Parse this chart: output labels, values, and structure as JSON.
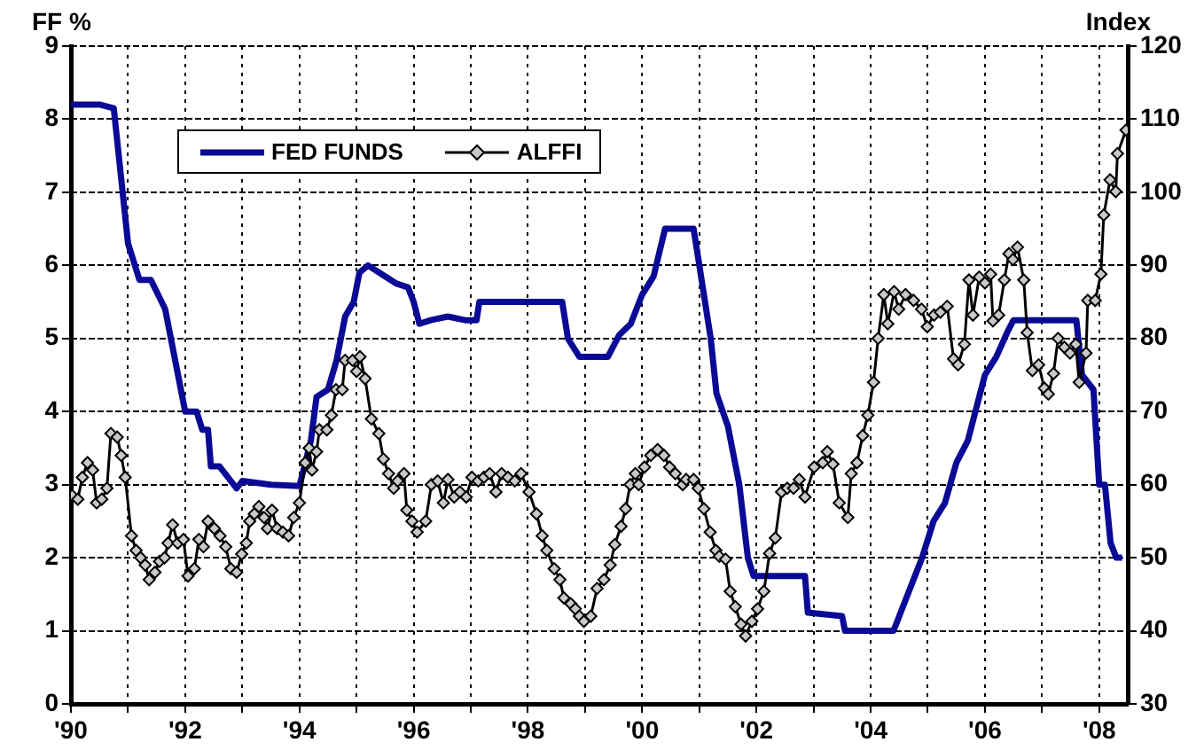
{
  "chart_data": {
    "type": "line",
    "ylabel": "FF %",
    "y2label": "Index",
    "xlim": [
      1990,
      2008.5
    ],
    "xticks": [
      {
        "value": 1990,
        "label": "'90"
      },
      {
        "value": 1991,
        "label": null
      },
      {
        "value": 1992,
        "label": "'92"
      },
      {
        "value": 1993,
        "label": null
      },
      {
        "value": 1994,
        "label": "'94"
      },
      {
        "value": 1995,
        "label": null
      },
      {
        "value": 1996,
        "label": "'96"
      },
      {
        "value": 1997,
        "label": null
      },
      {
        "value": 1998,
        "label": "'98"
      },
      {
        "value": 1999,
        "label": null
      },
      {
        "value": 2000,
        "label": "'00"
      },
      {
        "value": 2001,
        "label": null
      },
      {
        "value": 2002,
        "label": "'02"
      },
      {
        "value": 2003,
        "label": null
      },
      {
        "value": 2004,
        "label": "'04"
      },
      {
        "value": 2005,
        "label": null
      },
      {
        "value": 2006,
        "label": "'06"
      },
      {
        "value": 2007,
        "label": null
      },
      {
        "value": 2008,
        "label": "'08"
      }
    ],
    "ylim": [
      0,
      9
    ],
    "yticks": [
      0,
      1,
      2,
      3,
      4,
      5,
      6,
      7,
      8,
      9
    ],
    "y2lim": [
      30,
      120
    ],
    "y2ticks": [
      30,
      40,
      50,
      60,
      70,
      80,
      90,
      100,
      110,
      120
    ],
    "grid": true,
    "legend": "top left",
    "line_style": "solid",
    "series": [
      {
        "name": "FED FUNDS",
        "color": "#0a0a96",
        "marker": "none",
        "x": [
          1990.0,
          1990.5,
          1990.75,
          1991.0,
          1991.2,
          1991.4,
          1991.65,
          1991.85,
          1992.0,
          1992.2,
          1992.3,
          1992.4,
          1992.45,
          1992.6,
          1992.9,
          1993.0,
          1993.5,
          1994.0,
          1994.2,
          1994.3,
          1994.5,
          1994.65,
          1994.8,
          1994.95,
          1995.05,
          1995.2,
          1995.5,
          1995.7,
          1995.9,
          1996.0,
          1996.1,
          1996.3,
          1996.6,
          1996.9,
          1997.1,
          1997.15,
          1997.5,
          1998.0,
          1998.6,
          1998.7,
          1998.9,
          1999.1,
          1999.4,
          1999.6,
          1999.8,
          1999.9,
          2000.0,
          2000.2,
          2000.4,
          2000.9,
          2001.0,
          2001.2,
          2001.3,
          2001.5,
          2001.7,
          2001.85,
          2001.95,
          2002.5,
          2002.85,
          2002.9,
          2003.5,
          2003.55,
          2004.4,
          2004.6,
          2004.9,
          2005.1,
          2005.3,
          2005.5,
          2005.7,
          2005.9,
          2006.0,
          2006.2,
          2006.4,
          2006.5,
          2007.6,
          2007.7,
          2007.9,
          2008.0,
          2008.1,
          2008.2,
          2008.3,
          2008.4
        ],
        "values": [
          8.2,
          8.2,
          8.15,
          6.3,
          5.8,
          5.8,
          5.4,
          4.6,
          4.0,
          4.0,
          3.75,
          3.75,
          3.25,
          3.25,
          2.95,
          3.05,
          3.0,
          2.98,
          3.6,
          4.2,
          4.3,
          4.7,
          5.3,
          5.5,
          5.9,
          6.0,
          5.85,
          5.75,
          5.7,
          5.5,
          5.2,
          5.25,
          5.3,
          5.25,
          5.25,
          5.5,
          5.5,
          5.5,
          5.5,
          5.0,
          4.75,
          4.75,
          4.75,
          5.05,
          5.2,
          5.4,
          5.6,
          5.85,
          6.5,
          6.5,
          6.0,
          5.0,
          4.25,
          3.8,
          3.0,
          2.0,
          1.75,
          1.75,
          1.75,
          1.25,
          1.2,
          1.0,
          1.0,
          1.4,
          2.0,
          2.5,
          2.75,
          3.3,
          3.6,
          4.2,
          4.5,
          4.75,
          5.1,
          5.25,
          5.25,
          4.5,
          4.3,
          3.0,
          3.0,
          2.2,
          2.0,
          2.0
        ]
      },
      {
        "name": "ALFFI",
        "color": "#000000",
        "marker": "diamond",
        "axis": "y2",
        "x": [
          1990.02,
          1990.12,
          1990.2,
          1990.29,
          1990.38,
          1990.45,
          1990.54,
          1990.63,
          1990.7,
          1990.81,
          1990.88,
          1990.95,
          1991.06,
          1991.14,
          1991.22,
          1991.3,
          1991.37,
          1991.47,
          1991.55,
          1991.64,
          1991.7,
          1991.78,
          1991.87,
          1991.97,
          1992.05,
          1992.16,
          1992.24,
          1992.32,
          1992.4,
          1992.51,
          1992.61,
          1992.71,
          1992.8,
          1992.9,
          1992.99,
          1993.07,
          1993.13,
          1993.21,
          1993.29,
          1993.38,
          1993.44,
          1993.52,
          1993.61,
          1993.71,
          1993.81,
          1993.9,
          1994.0,
          1994.1,
          1994.17,
          1994.22,
          1994.3,
          1994.35,
          1994.48,
          1994.56,
          1994.64,
          1994.75,
          1994.8,
          1994.93,
          1995.0,
          1995.06,
          1995.15,
          1995.26,
          1995.39,
          1995.47,
          1995.56,
          1995.65,
          1995.72,
          1995.83,
          1995.88,
          1995.97,
          1996.06,
          1996.21,
          1996.31,
          1996.42,
          1996.52,
          1996.6,
          1996.71,
          1996.81,
          1996.92,
          1997.02,
          1997.13,
          1997.23,
          1997.33,
          1997.44,
          1997.54,
          1997.65,
          1997.77,
          1997.88,
          1998.02,
          1998.15,
          1998.25,
          1998.33,
          1998.46,
          1998.56,
          1998.63,
          1998.75,
          1998.83,
          1998.9,
          1998.98,
          1999.1,
          1999.21,
          1999.33,
          1999.44,
          1999.52,
          1999.63,
          1999.71,
          1999.79,
          1999.88,
          1999.94,
          2000.04,
          2000.15,
          2000.27,
          2000.38,
          2000.48,
          2000.58,
          2000.71,
          2000.77,
          2000.9,
          2000.98,
          2001.08,
          2001.19,
          2001.29,
          2001.35,
          2001.46,
          2001.54,
          2001.63,
          2001.73,
          2001.81,
          2001.92,
          2002.02,
          2002.13,
          2002.23,
          2002.33,
          2002.44,
          2002.54,
          2002.65,
          2002.75,
          2002.85,
          2003.01,
          2003.16,
          2003.24,
          2003.34,
          2003.45,
          2003.6,
          2003.66,
          2003.76,
          2003.86,
          2003.95,
          2004.05,
          2004.13,
          2004.23,
          2004.3,
          2004.41,
          2004.49,
          2004.61,
          2004.75,
          2004.89,
          2004.99,
          2005.11,
          2005.22,
          2005.34,
          2005.45,
          2005.53,
          2005.64,
          2005.72,
          2005.79,
          2005.9,
          2006.0,
          2006.1,
          2006.14,
          2006.24,
          2006.34,
          2006.42,
          2006.49,
          2006.57,
          2006.68,
          2006.74,
          2006.83,
          2006.94,
          2007.04,
          2007.11,
          2007.2,
          2007.28,
          2007.39,
          2007.49,
          2007.59,
          2007.65,
          2007.77,
          2007.8,
          2007.93,
          2008.03,
          2008.08,
          2008.19,
          2008.29,
          2008.32,
          2008.47
        ],
        "values": [
          58.5,
          58,
          61,
          63,
          62,
          57.5,
          58,
          59.5,
          67,
          66.5,
          64,
          61,
          53,
          51,
          50,
          49,
          47,
          48,
          49.5,
          50,
          52,
          54.5,
          52,
          52.5,
          47.5,
          48.5,
          52.5,
          51.5,
          55,
          54,
          53,
          51.5,
          48.5,
          48,
          50.5,
          52,
          55,
          56,
          57,
          55.5,
          54,
          56.5,
          54,
          53.5,
          53,
          55.5,
          57.5,
          63,
          65,
          62,
          64.5,
          67.5,
          67.5,
          69.5,
          73,
          73,
          77,
          77,
          75.5,
          77.5,
          74.5,
          69,
          67,
          63.5,
          61.5,
          59.5,
          60.5,
          61.5,
          56.5,
          55,
          53.5,
          55,
          60,
          60.5,
          57.5,
          60.7,
          58.3,
          59,
          58.3,
          61,
          60.5,
          61,
          61.5,
          59,
          61.5,
          61,
          60.5,
          61.5,
          59,
          56,
          53,
          51,
          48.5,
          47,
          44.5,
          43.7,
          43,
          42,
          41.3,
          42,
          45.8,
          47,
          49,
          51.8,
          54.3,
          56.7,
          60,
          61.5,
          60,
          62.4,
          64,
          64.8,
          64,
          62.4,
          61.5,
          60,
          60.7,
          60.7,
          59.5,
          56.7,
          53.5,
          51,
          50.2,
          49.8,
          45.4,
          43.3,
          40.9,
          39.3,
          41.3,
          43,
          45.4,
          50.6,
          52.7,
          59,
          59.5,
          59.5,
          60.7,
          58.3,
          62.4,
          63,
          64.5,
          62.8,
          57.5,
          55.5,
          61.5,
          63,
          66.7,
          69.5,
          74,
          80,
          86,
          82,
          86.4,
          84,
          86,
          85.2,
          84,
          81.6,
          83.2,
          83.6,
          84.4,
          77.2,
          76.4,
          79.2,
          88,
          83.2,
          88.4,
          87.6,
          88.8,
          82.4,
          83.2,
          88,
          91.6,
          90.8,
          92.5,
          88,
          80.8,
          75.6,
          76.4,
          73.2,
          72.4,
          75.2,
          80,
          78.8,
          78,
          79.2,
          74,
          78,
          85.2,
          85.2,
          88.8,
          96.9,
          101.7,
          100.1,
          105.3,
          108.5
        ]
      }
    ]
  }
}
